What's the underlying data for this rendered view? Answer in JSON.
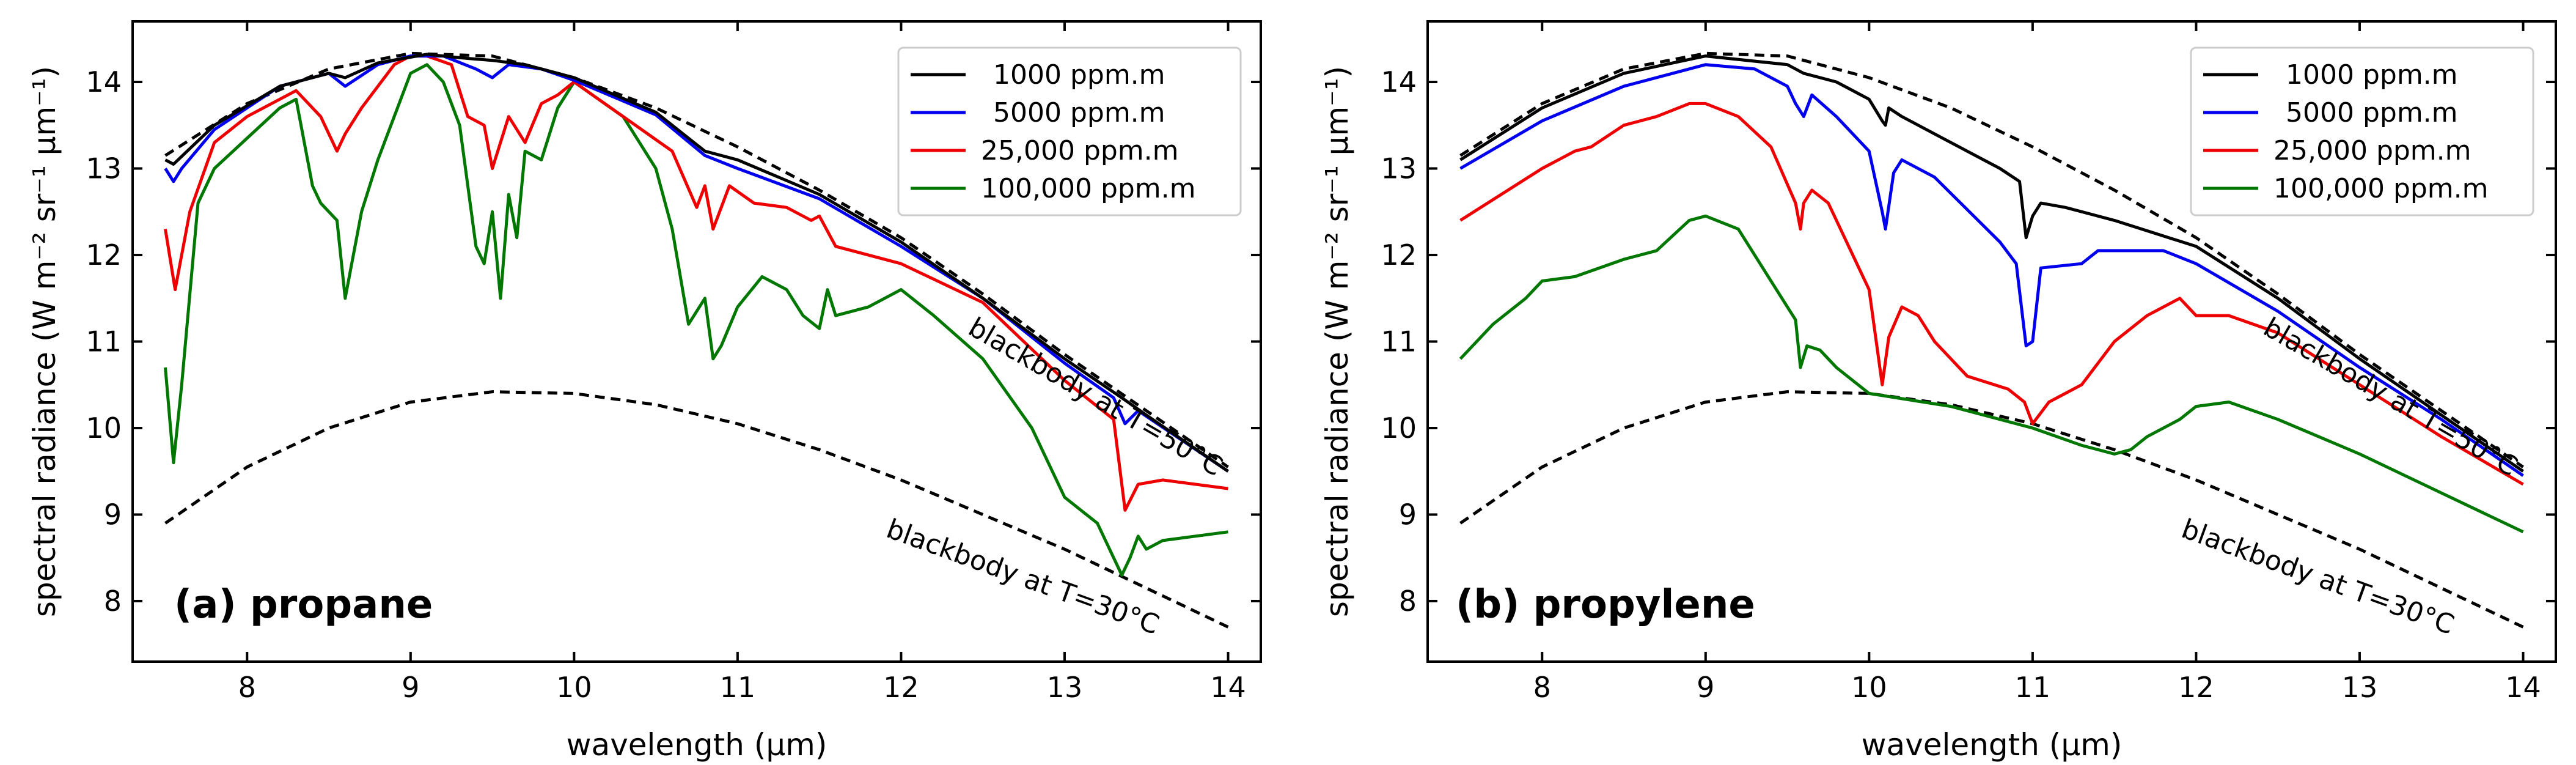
{
  "figure": {
    "xlabel": "wavelength (μm)",
    "ylabel": "spectral radiance (W m⁻² sr⁻¹ μm⁻¹)"
  },
  "chart_data": [
    {
      "type": "line",
      "title": "(a) propane",
      "xlabel": "wavelength (μm)",
      "ylabel": "spectral radiance (W m⁻² sr⁻¹ μm⁻¹)",
      "xlim": [
        7.3,
        14.2
      ],
      "ylim": [
        7.3,
        14.7
      ],
      "xticks": [
        8,
        9,
        10,
        11,
        12,
        13,
        14
      ],
      "yticks": [
        8,
        9,
        10,
        11,
        12,
        13,
        14
      ],
      "legend_position": "top-right",
      "annotations": [
        {
          "text": "blackbody at T=50°C",
          "x": 12.4,
          "y": 11.1,
          "angle_deg": 30
        },
        {
          "text": "blackbody at T=30°C",
          "x": 11.9,
          "y": 8.75,
          "angle_deg": 20
        }
      ],
      "reference_curves": [
        {
          "name": "blackbody at T=50°C",
          "style": "dashed",
          "color": "#000000",
          "x": [
            7.5,
            8.0,
            8.5,
            9.0,
            9.5,
            10.0,
            10.5,
            11.0,
            11.5,
            12.0,
            12.5,
            13.0,
            13.5,
            14.0
          ],
          "y": [
            13.15,
            13.75,
            14.15,
            14.33,
            14.3,
            14.05,
            13.7,
            13.25,
            12.75,
            12.2,
            11.55,
            10.85,
            10.2,
            9.55
          ]
        },
        {
          "name": "blackbody at T=30°C",
          "style": "dashed",
          "color": "#000000",
          "x": [
            7.5,
            8.0,
            8.5,
            9.0,
            9.5,
            10.0,
            10.5,
            11.0,
            11.5,
            12.0,
            12.5,
            13.0,
            13.5,
            14.0
          ],
          "y": [
            8.9,
            9.55,
            10.0,
            10.3,
            10.42,
            10.4,
            10.27,
            10.05,
            9.75,
            9.4,
            9.0,
            8.6,
            8.15,
            7.7
          ]
        }
      ],
      "series": [
        {
          "name": "1000 ppm.m",
          "color": "#000000",
          "x": [
            7.5,
            7.55,
            7.8,
            8.2,
            8.5,
            8.6,
            8.8,
            9.1,
            9.3,
            9.5,
            9.7,
            10.0,
            10.5,
            10.8,
            11.0,
            11.5,
            12.0,
            12.5,
            13.0,
            13.35,
            13.5,
            14.0
          ],
          "y": [
            13.1,
            13.05,
            13.5,
            13.95,
            14.1,
            14.05,
            14.22,
            14.32,
            14.28,
            14.25,
            14.2,
            14.05,
            13.65,
            13.2,
            13.1,
            12.7,
            12.15,
            11.5,
            10.8,
            10.35,
            10.15,
            9.5
          ]
        },
        {
          "name": "5000 ppm.m",
          "color": "#0000ee",
          "x": [
            7.5,
            7.55,
            7.6,
            7.8,
            8.2,
            8.5,
            8.6,
            8.8,
            9.0,
            9.2,
            9.4,
            9.5,
            9.6,
            9.8,
            10.0,
            10.5,
            10.8,
            11.0,
            11.5,
            12.0,
            12.5,
            13.0,
            13.3,
            13.37,
            13.45,
            14.0
          ],
          "y": [
            13.0,
            12.85,
            13.0,
            13.45,
            13.95,
            14.1,
            13.95,
            14.2,
            14.3,
            14.3,
            14.15,
            14.05,
            14.2,
            14.15,
            14.02,
            13.62,
            13.15,
            13.0,
            12.65,
            12.1,
            11.5,
            10.75,
            10.35,
            10.05,
            10.2,
            9.5
          ]
        },
        {
          "name": "25,000 ppm.m",
          "color": "#ee0000",
          "x": [
            7.5,
            7.56,
            7.65,
            7.8,
            8.0,
            8.3,
            8.45,
            8.55,
            8.6,
            8.7,
            8.9,
            9.0,
            9.1,
            9.25,
            9.35,
            9.45,
            9.5,
            9.6,
            9.7,
            9.8,
            9.9,
            10.0,
            10.3,
            10.6,
            10.75,
            10.8,
            10.85,
            10.95,
            11.1,
            11.3,
            11.45,
            11.5,
            11.6,
            12.0,
            12.5,
            13.0,
            13.3,
            13.37,
            13.45,
            13.6,
            14.0
          ],
          "y": [
            12.3,
            11.6,
            12.5,
            13.3,
            13.6,
            13.9,
            13.6,
            13.2,
            13.4,
            13.7,
            14.2,
            14.3,
            14.3,
            14.2,
            13.6,
            13.5,
            13.0,
            13.6,
            13.3,
            13.75,
            13.85,
            14.0,
            13.6,
            13.2,
            12.55,
            12.8,
            12.3,
            12.8,
            12.6,
            12.55,
            12.4,
            12.45,
            12.1,
            11.9,
            11.45,
            10.55,
            10.1,
            9.05,
            9.35,
            9.4,
            9.3
          ]
        },
        {
          "name": "100,000 ppm.m",
          "color": "#007700",
          "x": [
            7.5,
            7.55,
            7.6,
            7.7,
            7.8,
            8.0,
            8.2,
            8.3,
            8.4,
            8.45,
            8.55,
            8.6,
            8.65,
            8.7,
            8.8,
            9.0,
            9.1,
            9.2,
            9.3,
            9.4,
            9.45,
            9.5,
            9.55,
            9.6,
            9.65,
            9.7,
            9.8,
            9.9,
            10.0,
            10.3,
            10.5,
            10.6,
            10.7,
            10.8,
            10.85,
            10.9,
            11.0,
            11.15,
            11.3,
            11.4,
            11.5,
            11.55,
            11.6,
            11.8,
            12.0,
            12.2,
            12.5,
            12.8,
            13.0,
            13.2,
            13.35,
            13.4,
            13.45,
            13.5,
            13.6,
            13.8,
            14.0
          ],
          "y": [
            10.7,
            9.6,
            10.5,
            12.6,
            13.0,
            13.35,
            13.7,
            13.8,
            12.8,
            12.6,
            12.4,
            11.5,
            12.0,
            12.5,
            13.1,
            14.1,
            14.2,
            14.0,
            13.5,
            12.1,
            11.9,
            12.5,
            11.5,
            12.7,
            12.2,
            13.2,
            13.1,
            13.7,
            14.0,
            13.6,
            13.0,
            12.3,
            11.2,
            11.5,
            10.8,
            10.95,
            11.4,
            11.75,
            11.6,
            11.3,
            11.15,
            11.6,
            11.3,
            11.4,
            11.6,
            11.3,
            10.8,
            10.0,
            9.2,
            8.9,
            8.3,
            8.5,
            8.75,
            8.6,
            8.7,
            8.75,
            8.8
          ]
        }
      ]
    },
    {
      "type": "line",
      "title": "(b) propylene",
      "xlabel": "wavelength (μm)",
      "ylabel": "spectral radiance (W m⁻² sr⁻¹ μm⁻¹)",
      "xlim": [
        7.3,
        14.2
      ],
      "ylim": [
        7.3,
        14.7
      ],
      "xticks": [
        8,
        9,
        10,
        11,
        12,
        13,
        14
      ],
      "yticks": [
        8,
        9,
        10,
        11,
        12,
        13,
        14
      ],
      "legend_position": "top-right",
      "annotations": [
        {
          "text": "blackbody at T=50°C",
          "x": 12.4,
          "y": 11.1,
          "angle_deg": 30
        },
        {
          "text": "blackbody at T=30°C",
          "x": 11.9,
          "y": 8.75,
          "angle_deg": 20
        }
      ],
      "reference_curves": [
        {
          "name": "blackbody at T=50°C",
          "style": "dashed",
          "color": "#000000",
          "x": [
            7.5,
            8.0,
            8.5,
            9.0,
            9.5,
            10.0,
            10.5,
            11.0,
            11.5,
            12.0,
            12.5,
            13.0,
            13.5,
            14.0
          ],
          "y": [
            13.15,
            13.75,
            14.15,
            14.33,
            14.3,
            14.05,
            13.7,
            13.25,
            12.75,
            12.2,
            11.55,
            10.85,
            10.2,
            9.55
          ]
        },
        {
          "name": "blackbody at T=30°C",
          "style": "dashed",
          "color": "#000000",
          "x": [
            7.5,
            8.0,
            8.5,
            9.0,
            9.5,
            10.0,
            10.5,
            11.0,
            11.5,
            12.0,
            12.5,
            13.0,
            13.5,
            14.0
          ],
          "y": [
            8.9,
            9.55,
            10.0,
            10.3,
            10.42,
            10.4,
            10.27,
            10.05,
            9.75,
            9.4,
            9.0,
            8.6,
            8.15,
            7.7
          ]
        }
      ],
      "series": [
        {
          "name": "1000 ppm.m",
          "color": "#000000",
          "x": [
            7.5,
            8.0,
            8.5,
            9.0,
            9.5,
            9.6,
            9.8,
            10.0,
            10.08,
            10.1,
            10.12,
            10.2,
            10.5,
            10.8,
            10.92,
            10.96,
            11.0,
            11.05,
            11.2,
            11.5,
            12.0,
            12.5,
            13.0,
            13.5,
            14.0
          ],
          "y": [
            13.1,
            13.7,
            14.1,
            14.3,
            14.2,
            14.1,
            14.0,
            13.8,
            13.55,
            13.5,
            13.7,
            13.6,
            13.3,
            13.0,
            12.85,
            12.2,
            12.45,
            12.6,
            12.55,
            12.4,
            12.1,
            11.5,
            10.8,
            10.15,
            9.5
          ]
        },
        {
          "name": "5000 ppm.m",
          "color": "#0000ee",
          "x": [
            7.5,
            8.0,
            8.5,
            9.0,
            9.3,
            9.5,
            9.55,
            9.6,
            9.65,
            9.8,
            10.0,
            10.08,
            10.1,
            10.15,
            10.2,
            10.4,
            10.8,
            10.9,
            10.96,
            11.0,
            11.05,
            11.3,
            11.4,
            11.8,
            12.0,
            12.5,
            13.0,
            13.5,
            14.0
          ],
          "y": [
            13.0,
            13.55,
            13.95,
            14.2,
            14.15,
            13.95,
            13.75,
            13.6,
            13.85,
            13.6,
            13.2,
            12.5,
            12.3,
            12.95,
            13.1,
            12.9,
            12.15,
            11.9,
            10.95,
            11.0,
            11.85,
            11.9,
            12.05,
            12.05,
            11.9,
            11.35,
            10.7,
            10.1,
            9.45
          ]
        },
        {
          "name": "25,000 ppm.m",
          "color": "#ee0000",
          "x": [
            7.5,
            8.0,
            8.2,
            8.3,
            8.5,
            8.7,
            8.9,
            9.0,
            9.2,
            9.4,
            9.55,
            9.58,
            9.6,
            9.65,
            9.75,
            9.9,
            10.0,
            10.08,
            10.12,
            10.2,
            10.3,
            10.4,
            10.6,
            10.85,
            10.95,
            11.0,
            11.1,
            11.3,
            11.5,
            11.7,
            11.9,
            12.0,
            12.2,
            12.5,
            13.0,
            13.5,
            14.0
          ],
          "y": [
            12.4,
            13.0,
            13.2,
            13.25,
            13.5,
            13.6,
            13.75,
            13.75,
            13.6,
            13.25,
            12.6,
            12.3,
            12.6,
            12.75,
            12.6,
            12.0,
            11.6,
            10.5,
            11.05,
            11.4,
            11.3,
            11.0,
            10.6,
            10.45,
            10.3,
            10.05,
            10.3,
            10.5,
            11.0,
            11.3,
            11.5,
            11.3,
            11.3,
            11.1,
            10.5,
            9.9,
            9.35
          ]
        },
        {
          "name": "100,000 ppm.m",
          "color": "#007700",
          "x": [
            7.5,
            7.7,
            7.9,
            8.0,
            8.2,
            8.5,
            8.7,
            8.9,
            9.0,
            9.2,
            9.4,
            9.55,
            9.58,
            9.62,
            9.7,
            9.8,
            10.0,
            10.5,
            11.0,
            11.3,
            11.5,
            11.6,
            11.7,
            11.9,
            12.0,
            12.2,
            12.5,
            13.0,
            13.5,
            14.0
          ],
          "y": [
            10.8,
            11.2,
            11.5,
            11.7,
            11.75,
            11.95,
            12.05,
            12.4,
            12.45,
            12.3,
            11.7,
            11.25,
            10.7,
            10.95,
            10.9,
            10.7,
            10.4,
            10.25,
            10.0,
            9.8,
            9.7,
            9.75,
            9.9,
            10.1,
            10.25,
            10.3,
            10.1,
            9.7,
            9.25,
            8.8
          ]
        }
      ]
    }
  ]
}
